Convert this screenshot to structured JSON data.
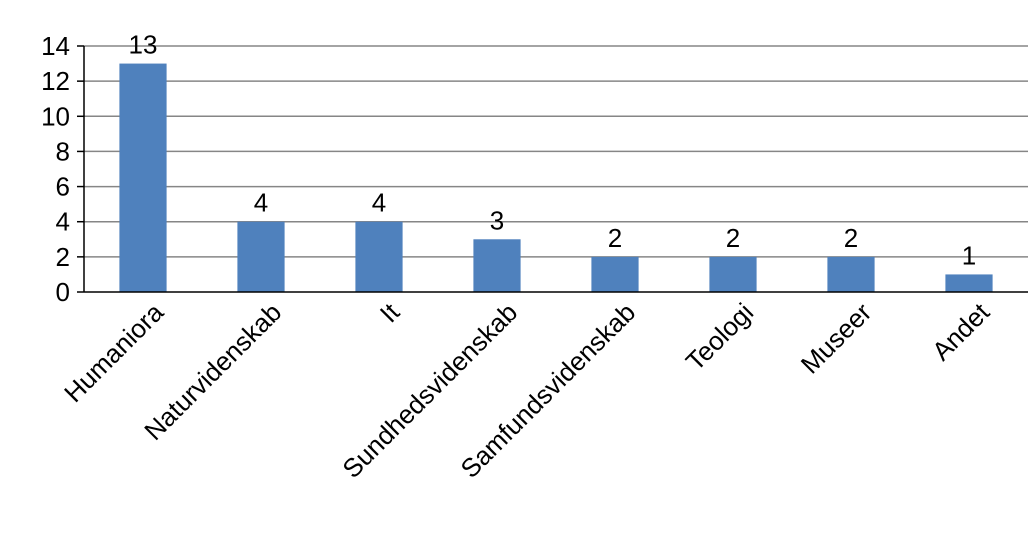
{
  "chart_data": {
    "type": "bar",
    "categories": [
      "Humaniora",
      "Naturvidenskab",
      "It",
      "Sundhedsvidenskab",
      "Samfundsvidenskab",
      "Teologi",
      "Museer",
      "Andet"
    ],
    "values": [
      13,
      4,
      4,
      3,
      2,
      2,
      2,
      1
    ],
    "title": "",
    "xlabel": "",
    "ylabel": "",
    "ylim": [
      0,
      14
    ],
    "yticks": [
      0,
      2,
      4,
      6,
      8,
      10,
      12,
      14
    ],
    "grid": true,
    "legend": "none",
    "data_labels": true,
    "category_label_rotation": -45,
    "colors": {
      "bar": "#4f81bd",
      "grid": "#868686",
      "axis": "#000000"
    }
  }
}
